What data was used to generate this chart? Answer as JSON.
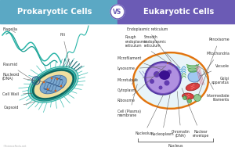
{
  "title_left": "Prokaryotic Cells",
  "title_vs": "VS",
  "title_right": "Eukaryotic Cells",
  "bg_left_color": "#5ba8c4",
  "bg_right_color": "#6b5bb5",
  "bg_main": "#ffffff",
  "title_font_color": "#ffffff",
  "vs_circle_color": "#ffffff",
  "vs_text_color": "#6b5bb5",
  "label_color": "#333333",
  "line_color": "#666666",
  "label_fs": 3.5
}
